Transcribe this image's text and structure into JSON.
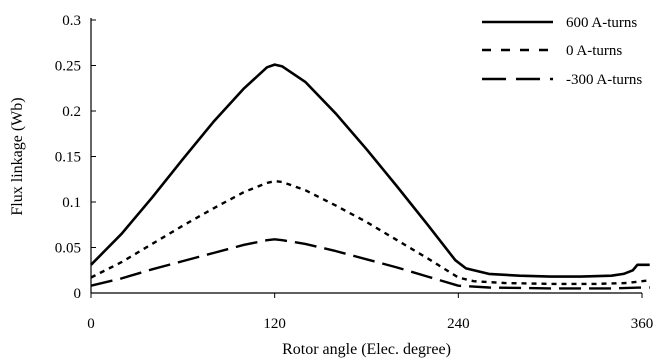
{
  "chart_data": {
    "type": "line",
    "title": "",
    "xlabel": "Rotor angle (Elec. degree)",
    "ylabel": "Flux linkage (Wb)",
    "xlim": [
      0,
      360
    ],
    "ylim": [
      0,
      0.3
    ],
    "xticks": [
      0,
      120,
      240,
      360
    ],
    "xtick_labels": [
      "0",
      "120",
      "240",
      "360"
    ],
    "yticks": [
      0,
      0.05,
      0.1,
      0.15,
      0.2,
      0.25,
      0.3
    ],
    "ytick_labels": [
      "0",
      "0.05",
      "0.1",
      "0.15",
      "0.2",
      "0.25",
      "0.3"
    ],
    "grid": false,
    "legend_position": "top-right",
    "series": [
      {
        "name": "600 A-turns",
        "style": "solid",
        "color": "#000000",
        "points": [
          [
            0,
            0.031
          ],
          [
            20,
            0.065
          ],
          [
            40,
            0.105
          ],
          [
            60,
            0.147
          ],
          [
            80,
            0.188
          ],
          [
            100,
            0.225
          ],
          [
            115,
            0.248
          ],
          [
            120,
            0.251
          ],
          [
            125,
            0.249
          ],
          [
            140,
            0.232
          ],
          [
            160,
            0.197
          ],
          [
            180,
            0.158
          ],
          [
            200,
            0.117
          ],
          [
            220,
            0.075
          ],
          [
            238,
            0.036
          ],
          [
            245,
            0.027
          ],
          [
            260,
            0.021
          ],
          [
            280,
            0.019
          ],
          [
            300,
            0.018
          ],
          [
            320,
            0.018
          ],
          [
            340,
            0.019
          ],
          [
            348,
            0.021
          ],
          [
            354,
            0.025
          ],
          [
            357,
            0.031
          ],
          [
            365,
            0.031
          ]
        ]
      },
      {
        "name": "0 A-turns",
        "style": "dotted",
        "color": "#000000",
        "points": [
          [
            0,
            0.017
          ],
          [
            20,
            0.034
          ],
          [
            40,
            0.054
          ],
          [
            60,
            0.074
          ],
          [
            80,
            0.093
          ],
          [
            100,
            0.111
          ],
          [
            115,
            0.121
          ],
          [
            120,
            0.123
          ],
          [
            125,
            0.122
          ],
          [
            140,
            0.113
          ],
          [
            160,
            0.096
          ],
          [
            180,
            0.078
          ],
          [
            200,
            0.058
          ],
          [
            220,
            0.038
          ],
          [
            240,
            0.017
          ],
          [
            250,
            0.013
          ],
          [
            270,
            0.011
          ],
          [
            300,
            0.01
          ],
          [
            330,
            0.01
          ],
          [
            350,
            0.011
          ],
          [
            360,
            0.013
          ],
          [
            365,
            0.014
          ]
        ]
      },
      {
        "name": "-300 A-turns",
        "style": "dashed",
        "color": "#000000",
        "points": [
          [
            0,
            0.008
          ],
          [
            20,
            0.016
          ],
          [
            40,
            0.026
          ],
          [
            60,
            0.035
          ],
          [
            80,
            0.044
          ],
          [
            100,
            0.053
          ],
          [
            115,
            0.058
          ],
          [
            120,
            0.059
          ],
          [
            125,
            0.058
          ],
          [
            140,
            0.054
          ],
          [
            160,
            0.046
          ],
          [
            180,
            0.037
          ],
          [
            200,
            0.028
          ],
          [
            220,
            0.018
          ],
          [
            240,
            0.008
          ],
          [
            260,
            0.006
          ],
          [
            300,
            0.005
          ],
          [
            340,
            0.005
          ],
          [
            360,
            0.006
          ],
          [
            365,
            0.006
          ]
        ]
      }
    ]
  }
}
